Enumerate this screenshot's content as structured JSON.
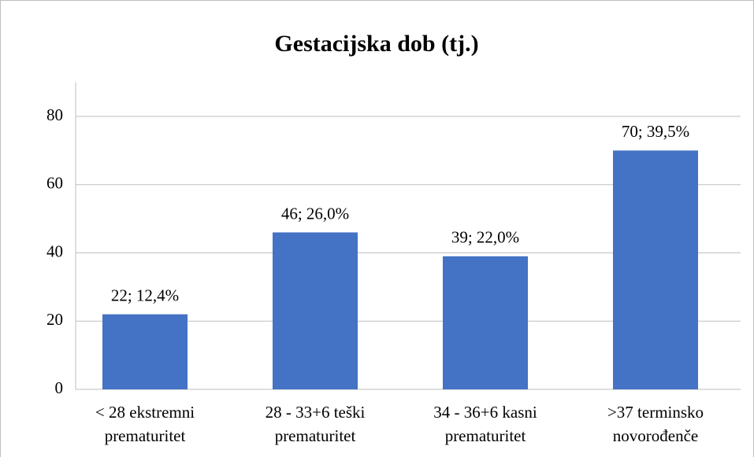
{
  "chart_data": {
    "type": "bar",
    "title": "Gestacijska dob (tj.)",
    "categories": [
      "< 28 ekstremni prematuritet",
      "28 - 33+6 teški prematuritet",
      "34 - 36+6 kasni prematuritet",
      ">37 terminsko novorođenče"
    ],
    "values": [
      22,
      46,
      39,
      70
    ],
    "value_labels": [
      "22; 12,4%",
      "46; 26,0%",
      "39; 22,0%",
      "70; 39,5%"
    ],
    "color": "#4472c4",
    "ylim": [
      0,
      90
    ],
    "yticks": [
      0,
      20,
      40,
      60,
      80
    ],
    "grid": true
  }
}
